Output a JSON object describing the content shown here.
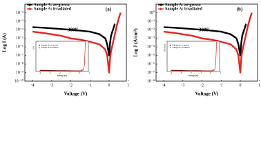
{
  "chart_data": [
    {
      "type": "line",
      "log_y": true,
      "panel": "(a)",
      "annotation": "300K",
      "x_label": "Voltage (V)",
      "y_label": "Log I (A)",
      "xlim": [
        -4.4,
        0.9
      ],
      "xticks": [
        -4,
        -3,
        -2,
        -1,
        0,
        1
      ],
      "ylim": [
        1e-10,
        0.1
      ],
      "yticks": [
        {
          "value": 0.01,
          "label": "10⁻²"
        },
        {
          "value": 0.001,
          "label": "10⁻³"
        },
        {
          "value": 0.0001,
          "label": "10⁻⁴"
        },
        {
          "value": 1e-05,
          "label": "10⁻⁵"
        },
        {
          "value": 1e-06,
          "label": "10⁻⁶"
        },
        {
          "value": 1e-07,
          "label": "10⁻⁷"
        },
        {
          "value": 1e-08,
          "label": "10⁻⁸"
        },
        {
          "value": 1e-09,
          "label": "10⁻⁹"
        },
        {
          "value": 1e-10,
          "label": "10⁻¹⁰"
        }
      ],
      "x": [
        -4,
        -3.5,
        -3,
        -2.5,
        -2,
        -1.5,
        -1,
        -0.5,
        -0.2,
        -0.1,
        0,
        0.05,
        0.1,
        0.2,
        0.3,
        0.4,
        0.5,
        0.6
      ],
      "series": [
        {
          "name": "Sample A: as-grown",
          "color": "#000000",
          "values": [
            0.0002,
            0.00018,
            0.00015,
            0.00012,
            0.0001,
            8e-05,
            6e-05,
            3e-05,
            1e-05,
            2e-06,
            1e-07,
            3e-06,
            2e-05,
            0.0001,
            0.0005,
            null,
            null,
            null
          ]
        },
        {
          "name": "Sample A: irradiated",
          "color": "#e8231e",
          "values": [
            6e-05,
            4.5e-05,
            3e-05,
            2e-05,
            1e-05,
            7e-06,
            4e-06,
            2e-06,
            5e-07,
            1e-07,
            1e-09,
            5e-08,
            3e-07,
            3e-06,
            3e-05,
            0.0003,
            0.002,
            0.01
          ]
        }
      ],
      "inset": {
        "x_label": "Voltage (V)",
        "y_label": "I (A)",
        "xlim": [
          -4.4,
          0.9
        ],
        "xticks": [
          -4,
          -3,
          -2,
          -1,
          0,
          1
        ]
      }
    },
    {
      "type": "line",
      "log_y": true,
      "panel": "(b)",
      "annotation": "300K",
      "x_label": "Voltage (V)",
      "y_label": "Log J (A/cm²)",
      "xlim": [
        -4.4,
        0.9
      ],
      "xticks": [
        -4,
        -3,
        -2,
        -1,
        0,
        1
      ],
      "ylim": [
        1e-08,
        10
      ],
      "yticks": [
        {
          "value": 1,
          "label": "10⁰"
        },
        {
          "value": 0.1,
          "label": "10⁻¹"
        },
        {
          "value": 0.01,
          "label": "10⁻²"
        },
        {
          "value": 0.001,
          "label": "10⁻³"
        },
        {
          "value": 0.0001,
          "label": "10⁻⁴"
        },
        {
          "value": 1e-05,
          "label": "10⁻⁵"
        },
        {
          "value": 1e-06,
          "label": "10⁻⁶"
        },
        {
          "value": 1e-07,
          "label": "10⁻⁷"
        },
        {
          "value": 1e-08,
          "label": "10⁻⁸"
        }
      ],
      "x": [
        -4,
        -3.5,
        -3,
        -2.5,
        -2,
        -1.5,
        -1,
        -0.5,
        -0.2,
        -0.1,
        0,
        0.05,
        0.1,
        0.2,
        0.3,
        0.4,
        0.5,
        0.6
      ],
      "series": [
        {
          "name": "Sample A: as-grown",
          "color": "#000000",
          "values": [
            0.02,
            0.018,
            0.015,
            0.012,
            0.01,
            0.008,
            0.006,
            0.003,
            0.001,
            0.0002,
            1e-05,
            0.0003,
            0.002,
            0.01,
            0.05,
            null,
            null,
            null
          ]
        },
        {
          "name": "Sample A: irradiated",
          "color": "#e8231e",
          "values": [
            0.006,
            0.0045,
            0.003,
            0.002,
            0.001,
            0.0007,
            0.0004,
            0.0002,
            5e-05,
            1e-05,
            1e-07,
            5e-06,
            3e-05,
            0.0003,
            0.003,
            0.03,
            0.2,
            1
          ]
        }
      ],
      "inset": {
        "x_label": "Voltage (V)",
        "y_label": "J (A/cm²)",
        "xlim": [
          -4.4,
          0.9
        ],
        "xticks": [
          -4,
          -3,
          -2,
          -1,
          0,
          1
        ]
      }
    }
  ]
}
